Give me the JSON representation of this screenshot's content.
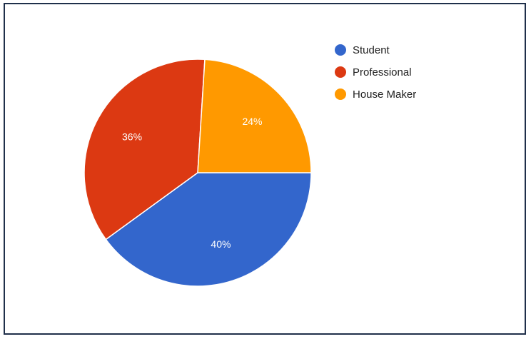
{
  "chart_data": {
    "type": "pie",
    "categories": [
      "Student",
      "Professional",
      "House Maker"
    ],
    "values": [
      40,
      36,
      24
    ],
    "labels": [
      "40%",
      "36%",
      "24%"
    ],
    "colors": [
      "#3366cc",
      "#dc3912",
      "#ff9900"
    ],
    "legend_position": "right",
    "title": ""
  }
}
